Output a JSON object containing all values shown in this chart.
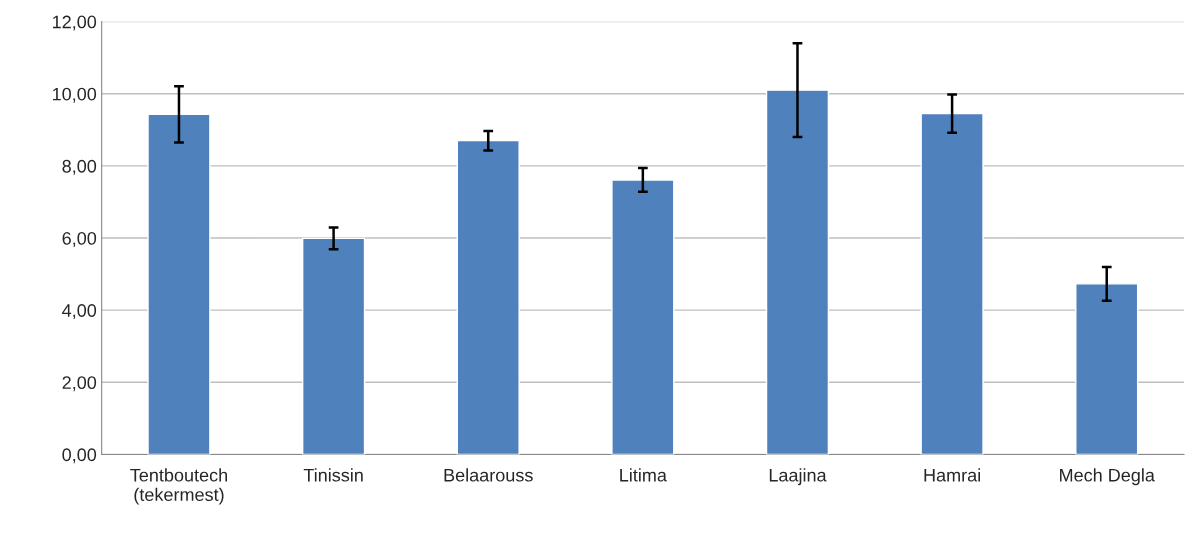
{
  "chart_data": {
    "type": "bar",
    "categories": [
      "Tentboutech\n(tekermest)",
      "Tinissin",
      "Belaarouss",
      "Litima",
      "Laajina",
      "Hamrai",
      "Mech Degla"
    ],
    "values": [
      9.43,
      5.99,
      8.7,
      7.61,
      10.1,
      9.45,
      4.73
    ],
    "errors": [
      0.78,
      0.3,
      0.27,
      0.33,
      1.3,
      0.53,
      0.47
    ],
    "color": "#4f81bd",
    "ylim": [
      0,
      12
    ],
    "yticks": [
      {
        "value": 0,
        "label": "0,00"
      },
      {
        "value": 2,
        "label": "2,00"
      },
      {
        "value": 4,
        "label": "4,00"
      },
      {
        "value": 6,
        "label": "6,00"
      },
      {
        "value": 8,
        "label": "8,00"
      },
      {
        "value": 10,
        "label": "10,00"
      },
      {
        "value": 12,
        "label": "12,00"
      }
    ],
    "grid": "y"
  }
}
